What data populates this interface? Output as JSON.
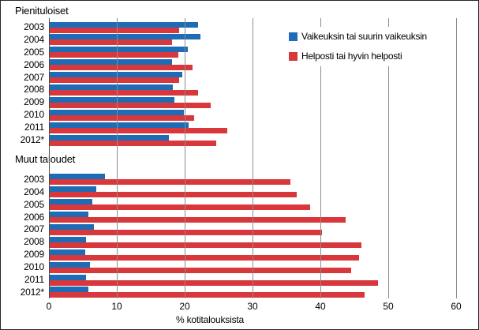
{
  "chart_data": {
    "type": "bar",
    "orientation": "horizontal",
    "xlabel": "% kotitalouksista",
    "xlim": [
      0,
      60
    ],
    "x_ticks": [
      0,
      10,
      20,
      30,
      40,
      50,
      60
    ],
    "grid": "vertical gridlines every 10 units, drawn over bars",
    "legend_position": "top-right",
    "categories": [
      "2003",
      "2004",
      "2005",
      "2006",
      "2007",
      "2008",
      "2009",
      "2010",
      "2011",
      "2012*"
    ],
    "legend": [
      {
        "label": "Vaikeuksin tai suurin vaikeuksin",
        "color": "#1e6cb5"
      },
      {
        "label": "Helposti tai hyvin helposti",
        "color": "#d8383c"
      }
    ],
    "sections": [
      {
        "title": "Pienituloiset",
        "series": [
          {
            "name": "Vaikeuksin tai suurin vaikeuksin",
            "color": "#1e6cb5",
            "values": [
              21.8,
              22.2,
              20.3,
              18.0,
              19.5,
              18.1,
              18.4,
              19.8,
              20.5,
              17.5
            ]
          },
          {
            "name": "Helposti tai hyvin helposti",
            "color": "#d8383c",
            "values": [
              19.1,
              18.0,
              19.0,
              21.0,
              19.1,
              21.9,
              23.7,
              21.3,
              26.2,
              24.5
            ]
          }
        ]
      },
      {
        "title": "Muut taloudet",
        "series": [
          {
            "name": "Vaikeuksin tai suurin vaikeuksin",
            "color": "#1e6cb5",
            "values": [
              8.1,
              6.9,
              6.3,
              5.7,
              6.5,
              5.4,
              5.2,
              5.9,
              5.3,
              5.7
            ]
          },
          {
            "name": "Helposti tai hyvin helposti",
            "color": "#d8383c",
            "values": [
              35.5,
              36.4,
              38.4,
              43.6,
              40.1,
              45.9,
              45.6,
              44.4,
              48.4,
              46.4
            ]
          }
        ]
      }
    ]
  }
}
